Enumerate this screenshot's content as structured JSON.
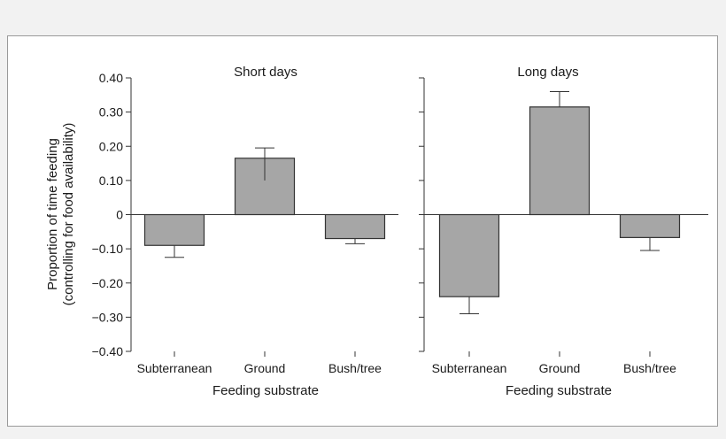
{
  "chart_data": [
    {
      "type": "bar",
      "title": "Short days",
      "categories": [
        "Subterranean",
        "Ground",
        "Bush/tree"
      ],
      "values": [
        -0.09,
        0.165,
        -0.07
      ],
      "error_low": [
        -0.125,
        0.1,
        -0.085
      ],
      "error_high": [
        -0.09,
        0.195,
        -0.07
      ],
      "xlabel": "Feeding substrate",
      "ylabel": [
        "Proportion of time feeding",
        "(controlling for food availability)"
      ],
      "ylim": [
        -0.4,
        0.4
      ],
      "yticks": [
        0.4,
        0.3,
        0.2,
        0.1,
        0,
        -0.1,
        -0.2,
        -0.3,
        -0.4
      ],
      "ytick_labels": [
        "0.40",
        "0.30",
        "0.20",
        "0.10",
        "0",
        "−0.10",
        "−0.20",
        "−0.30",
        "−0.40"
      ],
      "bar_color": "#a6a6a6"
    },
    {
      "type": "bar",
      "title": "Long days",
      "categories": [
        "Subterranean",
        "Ground",
        "Bush/tree"
      ],
      "values": [
        -0.24,
        0.315,
        -0.067
      ],
      "error_low": [
        -0.29,
        0.315,
        -0.105
      ],
      "error_high": [
        -0.24,
        0.36,
        -0.067
      ],
      "xlabel": "Feeding substrate",
      "ylim": [
        -0.4,
        0.4
      ],
      "yticks": [
        0.4,
        0.3,
        0.2,
        0.1,
        0,
        -0.1,
        -0.2,
        -0.3,
        -0.4
      ],
      "bar_color": "#a6a6a6"
    }
  ]
}
